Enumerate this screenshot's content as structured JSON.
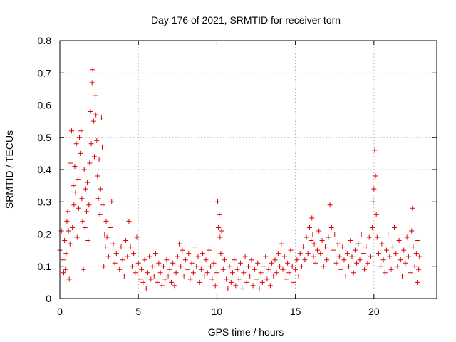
{
  "chart_data": {
    "type": "scatter",
    "title": "Day 176 of 2021, SRMTID for receiver torn",
    "xlabel": "GPS time / hours",
    "ylabel": "SRMTID / TECUs",
    "xlim": [
      0,
      24
    ],
    "ylim": [
      0,
      0.8
    ],
    "xticks": [
      "0",
      "5",
      "10",
      "15",
      "20"
    ],
    "yticks": [
      "0",
      "0.1",
      "0.2",
      "0.3",
      "0.4",
      "0.5",
      "0.6",
      "0.7",
      "0.8"
    ],
    "grid": true,
    "marker": "+",
    "color": "#e00000",
    "series": [
      {
        "name": "SRMTID",
        "points": [
          [
            0.0,
            0.15
          ],
          [
            0.1,
            0.21
          ],
          [
            0.2,
            0.12
          ],
          [
            0.25,
            0.08
          ],
          [
            0.3,
            0.18
          ],
          [
            0.35,
            0.09
          ],
          [
            0.4,
            0.14
          ],
          [
            0.45,
            0.24
          ],
          [
            0.5,
            0.27
          ],
          [
            0.55,
            0.21
          ],
          [
            0.6,
            0.06
          ],
          [
            0.65,
            0.17
          ],
          [
            0.7,
            0.42
          ],
          [
            0.75,
            0.52
          ],
          [
            0.8,
            0.22
          ],
          [
            0.85,
            0.35
          ],
          [
            0.9,
            0.29
          ],
          [
            0.95,
            0.41
          ],
          [
            1.0,
            0.33
          ],
          [
            1.05,
            0.48
          ],
          [
            1.1,
            0.19
          ],
          [
            1.15,
            0.37
          ],
          [
            1.2,
            0.28
          ],
          [
            1.25,
            0.5
          ],
          [
            1.3,
            0.45
          ],
          [
            1.35,
            0.52
          ],
          [
            1.4,
            0.31
          ],
          [
            1.45,
            0.24
          ],
          [
            1.5,
            0.09
          ],
          [
            1.55,
            0.4
          ],
          [
            1.6,
            0.22
          ],
          [
            1.65,
            0.34
          ],
          [
            1.7,
            0.27
          ],
          [
            1.75,
            0.36
          ],
          [
            1.8,
            0.18
          ],
          [
            1.85,
            0.29
          ],
          [
            1.9,
            0.42
          ],
          [
            1.95,
            0.58
          ],
          [
            2.0,
            0.48
          ],
          [
            2.05,
            0.67
          ],
          [
            2.1,
            0.71
          ],
          [
            2.15,
            0.55
          ],
          [
            2.2,
            0.44
          ],
          [
            2.25,
            0.63
          ],
          [
            2.3,
            0.57
          ],
          [
            2.35,
            0.49
          ],
          [
            2.4,
            0.38
          ],
          [
            2.45,
            0.31
          ],
          [
            2.5,
            0.43
          ],
          [
            2.55,
            0.26
          ],
          [
            2.6,
            0.34
          ],
          [
            2.65,
            0.56
          ],
          [
            2.7,
            0.47
          ],
          [
            2.75,
            0.29
          ],
          [
            2.8,
            0.1
          ],
          [
            2.85,
            0.2
          ],
          [
            2.9,
            0.16
          ],
          [
            2.95,
            0.24
          ],
          [
            3.0,
            0.19
          ],
          [
            3.1,
            0.13
          ],
          [
            3.2,
            0.22
          ],
          [
            3.3,
            0.3
          ],
          [
            3.4,
            0.17
          ],
          [
            3.5,
            0.11
          ],
          [
            3.6,
            0.14
          ],
          [
            3.7,
            0.2
          ],
          [
            3.8,
            0.09
          ],
          [
            3.9,
            0.16
          ],
          [
            4.0,
            0.12
          ],
          [
            4.1,
            0.07
          ],
          [
            4.2,
            0.18
          ],
          [
            4.3,
            0.13
          ],
          [
            4.4,
            0.24
          ],
          [
            4.5,
            0.16
          ],
          [
            4.6,
            0.1
          ],
          [
            4.7,
            0.14
          ],
          [
            4.8,
            0.08
          ],
          [
            4.9,
            0.19
          ],
          [
            5.0,
            0.11
          ],
          [
            5.1,
            0.06
          ],
          [
            5.2,
            0.09
          ],
          [
            5.3,
            0.05
          ],
          [
            5.4,
            0.12
          ],
          [
            5.5,
            0.03
          ],
          [
            5.6,
            0.08
          ],
          [
            5.7,
            0.13
          ],
          [
            5.8,
            0.06
          ],
          [
            5.9,
            0.1
          ],
          [
            6.0,
            0.07
          ],
          [
            6.1,
            0.14
          ],
          [
            6.2,
            0.05
          ],
          [
            6.3,
            0.11
          ],
          [
            6.4,
            0.08
          ],
          [
            6.5,
            0.04
          ],
          [
            6.6,
            0.1
          ],
          [
            6.7,
            0.06
          ],
          [
            6.8,
            0.12
          ],
          [
            6.9,
            0.07
          ],
          [
            7.0,
            0.09
          ],
          [
            7.1,
            0.05
          ],
          [
            7.2,
            0.11
          ],
          [
            7.3,
            0.04
          ],
          [
            7.4,
            0.08
          ],
          [
            7.5,
            0.13
          ],
          [
            7.6,
            0.17
          ],
          [
            7.7,
            0.1
          ],
          [
            7.8,
            0.15
          ],
          [
            7.9,
            0.07
          ],
          [
            8.0,
            0.12
          ],
          [
            8.1,
            0.09
          ],
          [
            8.2,
            0.14
          ],
          [
            8.3,
            0.06
          ],
          [
            8.4,
            0.11
          ],
          [
            8.5,
            0.08
          ],
          [
            8.6,
            0.16
          ],
          [
            8.7,
            0.1
          ],
          [
            8.8,
            0.13
          ],
          [
            8.9,
            0.05
          ],
          [
            9.0,
            0.09
          ],
          [
            9.1,
            0.14
          ],
          [
            9.2,
            0.07
          ],
          [
            9.3,
            0.12
          ],
          [
            9.4,
            0.08
          ],
          [
            9.5,
            0.15
          ],
          [
            9.6,
            0.1
          ],
          [
            9.7,
            0.06
          ],
          [
            9.8,
            0.11
          ],
          [
            9.9,
            0.04
          ],
          [
            10.0,
            0.08
          ],
          [
            10.05,
            0.3
          ],
          [
            10.1,
            0.22
          ],
          [
            10.15,
            0.26
          ],
          [
            10.2,
            0.19
          ],
          [
            10.25,
            0.14
          ],
          [
            10.3,
            0.21
          ],
          [
            10.4,
            0.09
          ],
          [
            10.5,
            0.12
          ],
          [
            10.6,
            0.06
          ],
          [
            10.7,
            0.03
          ],
          [
            10.8,
            0.1
          ],
          [
            10.9,
            0.05
          ],
          [
            11.0,
            0.08
          ],
          [
            11.1,
            0.12
          ],
          [
            11.2,
            0.04
          ],
          [
            11.3,
            0.09
          ],
          [
            11.4,
            0.06
          ],
          [
            11.5,
            0.11
          ],
          [
            11.6,
            0.03
          ],
          [
            11.7,
            0.08
          ],
          [
            11.8,
            0.13
          ],
          [
            11.9,
            0.05
          ],
          [
            12.0,
            0.1
          ],
          [
            12.1,
            0.07
          ],
          [
            12.2,
            0.12
          ],
          [
            12.3,
            0.04
          ],
          [
            12.4,
            0.09
          ],
          [
            12.5,
            0.06
          ],
          [
            12.6,
            0.11
          ],
          [
            12.7,
            0.03
          ],
          [
            12.8,
            0.08
          ],
          [
            12.9,
            0.05
          ],
          [
            13.0,
            0.1
          ],
          [
            13.1,
            0.13
          ],
          [
            13.2,
            0.06
          ],
          [
            13.3,
            0.09
          ],
          [
            13.4,
            0.04
          ],
          [
            13.5,
            0.11
          ],
          [
            13.6,
            0.07
          ],
          [
            13.7,
            0.12
          ],
          [
            13.8,
            0.08
          ],
          [
            13.9,
            0.14
          ],
          [
            14.0,
            0.1
          ],
          [
            14.1,
            0.17
          ],
          [
            14.2,
            0.09
          ],
          [
            14.3,
            0.13
          ],
          [
            14.4,
            0.06
          ],
          [
            14.5,
            0.11
          ],
          [
            14.6,
            0.08
          ],
          [
            14.7,
            0.15
          ],
          [
            14.8,
            0.1
          ],
          [
            14.9,
            0.05
          ],
          [
            15.0,
            0.09
          ],
          [
            15.1,
            0.12
          ],
          [
            15.2,
            0.07
          ],
          [
            15.3,
            0.14
          ],
          [
            15.4,
            0.1
          ],
          [
            15.5,
            0.16
          ],
          [
            15.6,
            0.12
          ],
          [
            15.7,
            0.19
          ],
          [
            15.8,
            0.14
          ],
          [
            15.9,
            0.22
          ],
          [
            16.0,
            0.18
          ],
          [
            16.05,
            0.25
          ],
          [
            16.1,
            0.2
          ],
          [
            16.15,
            0.13
          ],
          [
            16.2,
            0.17
          ],
          [
            16.3,
            0.11
          ],
          [
            16.4,
            0.15
          ],
          [
            16.5,
            0.21
          ],
          [
            16.6,
            0.14
          ],
          [
            16.7,
            0.18
          ],
          [
            16.8,
            0.1
          ],
          [
            16.9,
            0.16
          ],
          [
            17.0,
            0.12
          ],
          [
            17.1,
            0.19
          ],
          [
            17.2,
            0.29
          ],
          [
            17.3,
            0.22
          ],
          [
            17.4,
            0.15
          ],
          [
            17.5,
            0.2
          ],
          [
            17.6,
            0.11
          ],
          [
            17.7,
            0.17
          ],
          [
            17.8,
            0.13
          ],
          [
            17.9,
            0.09
          ],
          [
            18.0,
            0.16
          ],
          [
            18.1,
            0.12
          ],
          [
            18.2,
            0.07
          ],
          [
            18.3,
            0.14
          ],
          [
            18.4,
            0.1
          ],
          [
            18.5,
            0.18
          ],
          [
            18.6,
            0.13
          ],
          [
            18.7,
            0.08
          ],
          [
            18.8,
            0.15
          ],
          [
            18.9,
            0.11
          ],
          [
            19.0,
            0.17
          ],
          [
            19.1,
            0.12
          ],
          [
            19.2,
            0.2
          ],
          [
            19.3,
            0.14
          ],
          [
            19.4,
            0.09
          ],
          [
            19.5,
            0.16
          ],
          [
            19.6,
            0.11
          ],
          [
            19.7,
            0.19
          ],
          [
            19.8,
            0.13
          ],
          [
            19.9,
            0.22
          ],
          [
            19.95,
            0.3
          ],
          [
            20.0,
            0.34
          ],
          [
            20.05,
            0.46
          ],
          [
            20.1,
            0.38
          ],
          [
            20.15,
            0.26
          ],
          [
            20.2,
            0.19
          ],
          [
            20.3,
            0.14
          ],
          [
            20.4,
            0.1
          ],
          [
            20.5,
            0.17
          ],
          [
            20.6,
            0.12
          ],
          [
            20.7,
            0.08
          ],
          [
            20.8,
            0.15
          ],
          [
            20.9,
            0.2
          ],
          [
            21.0,
            0.13
          ],
          [
            21.1,
            0.09
          ],
          [
            21.2,
            0.16
          ],
          [
            21.3,
            0.22
          ],
          [
            21.4,
            0.14
          ],
          [
            21.5,
            0.1
          ],
          [
            21.6,
            0.18
          ],
          [
            21.7,
            0.12
          ],
          [
            21.8,
            0.07
          ],
          [
            21.9,
            0.15
          ],
          [
            22.0,
            0.11
          ],
          [
            22.1,
            0.19
          ],
          [
            22.2,
            0.13
          ],
          [
            22.3,
            0.08
          ],
          [
            22.4,
            0.21
          ],
          [
            22.45,
            0.28
          ],
          [
            22.5,
            0.16
          ],
          [
            22.6,
            0.1
          ],
          [
            22.7,
            0.14
          ],
          [
            22.75,
            0.05
          ],
          [
            22.8,
            0.18
          ],
          [
            22.85,
            0.09
          ],
          [
            22.9,
            0.13
          ]
        ]
      }
    ]
  }
}
